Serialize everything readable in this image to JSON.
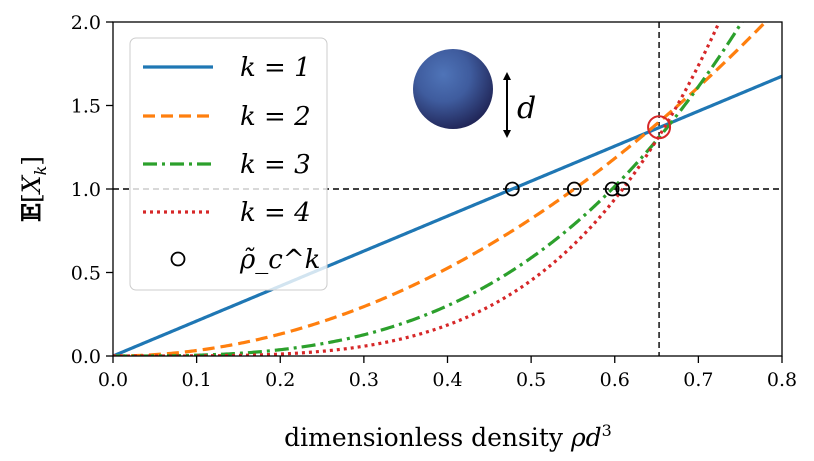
{
  "chart_data": {
    "type": "line",
    "title": "",
    "xlabel": "dimensionless density ρd³",
    "ylabel": "𝔼[X_k]",
    "xlim": [
      0.0,
      0.8
    ],
    "ylim": [
      0.0,
      2.0
    ],
    "xticks": [
      0.0,
      0.1,
      0.2,
      0.3,
      0.4,
      0.5,
      0.6,
      0.7,
      0.8
    ],
    "xtick_labels": [
      "0.0",
      "0.1",
      "0.2",
      "0.3",
      "0.4",
      "0.5",
      "0.6",
      "0.7",
      "0.8"
    ],
    "yticks": [
      0.0,
      0.5,
      1.0,
      1.5,
      2.0
    ],
    "ytick_labels": [
      "0.0",
      "0.5",
      "1.0",
      "1.5",
      "2.0"
    ],
    "grid": false,
    "legend_position": "top-left",
    "series": [
      {
        "name": "k = 1",
        "k": 1,
        "color": "#1f77b4",
        "style": "solid",
        "formula": "(x/0.4775)^k"
      },
      {
        "name": "k = 2",
        "k": 2,
        "color": "#ff7f0e",
        "style": "dashed",
        "formula": "(x/0.5516)^k"
      },
      {
        "name": "k = 3",
        "k": 3,
        "color": "#2ca02c",
        "style": "dashdot",
        "formula": "(x/0.5969)^k"
      },
      {
        "name": "k = 4",
        "k": 4,
        "color": "#d62728",
        "style": "dotted",
        "formula": "(x/0.6096)^k"
      }
    ],
    "critical_points": {
      "name": "ρ̃_c^k",
      "color": "#000000",
      "points": [
        {
          "x": 0.4775,
          "y": 1.0
        },
        {
          "x": 0.5516,
          "y": 1.0
        },
        {
          "x": 0.5969,
          "y": 1.0
        },
        {
          "x": 0.6096,
          "y": 1.0
        }
      ]
    },
    "intersection": {
      "x": 0.653,
      "y": 1.37,
      "color": "#d62728"
    },
    "reference_lines": {
      "horizontal_y": 1.0,
      "vertical_x": 0.653
    },
    "annotations": [
      {
        "type": "sphere-icon",
        "label": "d",
        "description": "sphere with diameter arrow"
      }
    ]
  }
}
